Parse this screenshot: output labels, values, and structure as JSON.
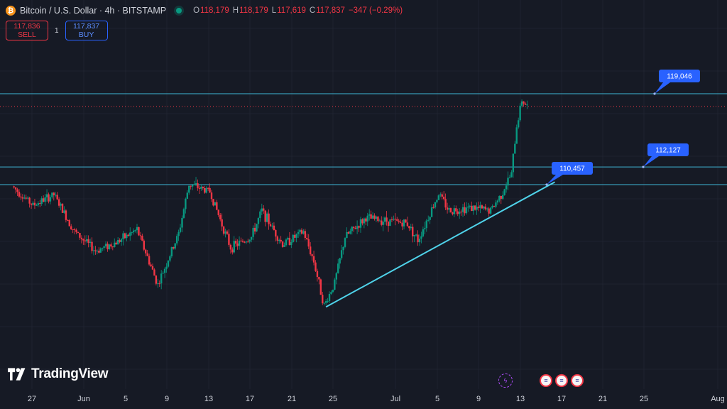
{
  "header": {
    "symbol": "Bitcoin / U.S. Dollar · 4h · BITSTAMP",
    "ohlc": [
      {
        "key": "O",
        "value": "118,179"
      },
      {
        "key": "H",
        "value": "118,179"
      },
      {
        "key": "L",
        "value": "117,619"
      },
      {
        "key": "C",
        "value": "117,837"
      }
    ],
    "change": "−347 (−0.29%)"
  },
  "trade": {
    "sell_price": "117,836",
    "sell_label": "SELL",
    "spread": "1",
    "buy_price": "117,837",
    "buy_label": "BUY"
  },
  "branding": {
    "logo_text": "TradingView"
  },
  "chart_data": {
    "type": "candlestick",
    "interval": "4h",
    "x_ticks": [
      "27",
      "Jun",
      "5",
      "9",
      "13",
      "17",
      "21",
      "25",
      "Jul",
      "5",
      "9",
      "13",
      "17",
      "21",
      "25",
      "Aug"
    ],
    "ylim": [
      98000,
      121000
    ],
    "price_path": [
      {
        "x": "May 23",
        "y": 110300
      },
      {
        "x": "May 25",
        "y": 108500
      },
      {
        "x": "May 27",
        "y": 109500
      },
      {
        "x": "May 29",
        "y": 106000
      },
      {
        "x": "May 31",
        "y": 104200
      },
      {
        "x": "Jun 2",
        "y": 105000
      },
      {
        "x": "Jun 4",
        "y": 106200
      },
      {
        "x": "Jun 6",
        "y": 101000
      },
      {
        "x": "Jun 8",
        "y": 105800
      },
      {
        "x": "Jun 9",
        "y": 110500
      },
      {
        "x": "Jun 11",
        "y": 109800
      },
      {
        "x": "Jun 13",
        "y": 104500
      },
      {
        "x": "Jun 15",
        "y": 105500
      },
      {
        "x": "Jun 16",
        "y": 108000
      },
      {
        "x": "Jun 18",
        "y": 104800
      },
      {
        "x": "Jun 20",
        "y": 106000
      },
      {
        "x": "Jun 21",
        "y": 103200
      },
      {
        "x": "Jun 22",
        "y": 99000
      },
      {
        "x": "Jun 23",
        "y": 101200
      },
      {
        "x": "Jun 24",
        "y": 105500
      },
      {
        "x": "Jun 26",
        "y": 107300
      },
      {
        "x": "Jun 30",
        "y": 106800
      },
      {
        "x": "Jul 1",
        "y": 105200
      },
      {
        "x": "Jul 3",
        "y": 109600
      },
      {
        "x": "Jul 4",
        "y": 108000
      },
      {
        "x": "Jul 6",
        "y": 108300
      },
      {
        "x": "Jul 8",
        "y": 108000
      },
      {
        "x": "Jul 9",
        "y": 109500
      },
      {
        "x": "Jul 10",
        "y": 111500
      },
      {
        "x": "Jul 10 PM",
        "y": 116000
      },
      {
        "x": "Jul 11",
        "y": 118500
      },
      {
        "x": "Jul 11 PM",
        "y": 117837
      }
    ],
    "horizontal_lines": [
      {
        "label": "119,046",
        "value": 119046
      },
      {
        "label": "112,127",
        "value": 112127
      },
      {
        "label": "110,457",
        "value": 110457
      }
    ],
    "last_price": 117837,
    "trendline": {
      "from": {
        "x": "Jun 22",
        "y": 98900
      },
      "to": {
        "x": "Jul 14",
        "y": 110700
      }
    },
    "grid": true
  },
  "colors": {
    "up": "#089981",
    "down": "#f23645",
    "level_line": "#3fb6d6",
    "trendline": "#4fd3ea",
    "label_bg": "#2962ff",
    "price_line": "#f23645"
  }
}
